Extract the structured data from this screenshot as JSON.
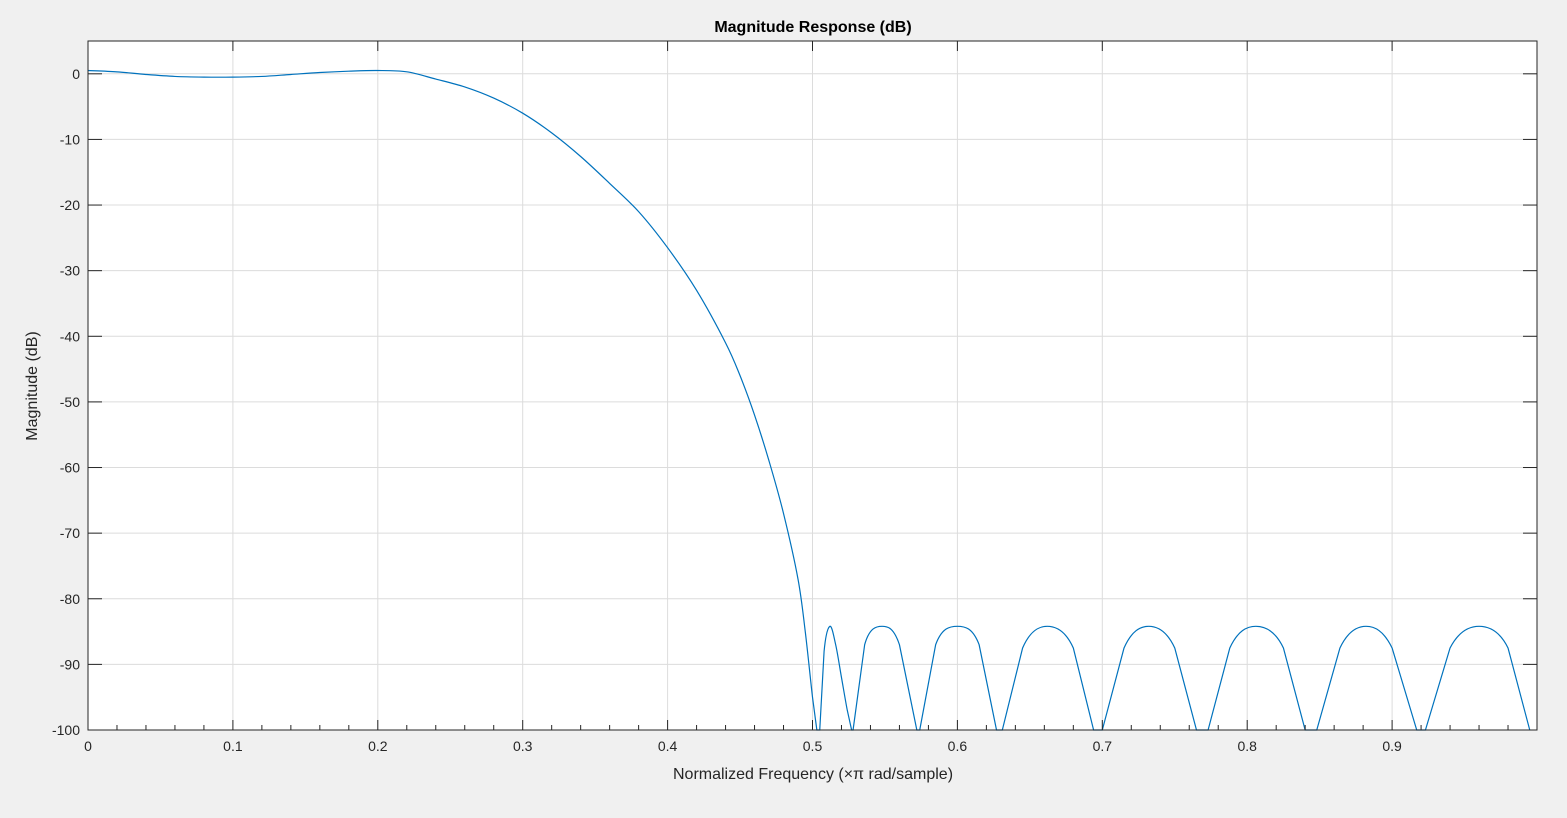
{
  "chart_data": {
    "type": "line",
    "title": "Magnitude Response (dB)",
    "xlabel": "Normalized Frequency (×π rad/sample)",
    "ylabel": "Magnitude (dB)",
    "xlim": [
      0,
      1
    ],
    "ylim": [
      -100,
      5
    ],
    "grid": true,
    "legend": "none",
    "xticks": [
      0,
      0.1,
      0.2,
      0.3,
      0.4,
      0.5,
      0.6,
      0.7,
      0.8,
      0.9
    ],
    "xtick_labels": [
      "0",
      "0.1",
      "0.2",
      "0.3",
      "0.4",
      "0.5",
      "0.6",
      "0.7",
      "0.8",
      "0.9"
    ],
    "yticks": [
      0,
      -10,
      -20,
      -30,
      -40,
      -50,
      -60,
      -70,
      -80,
      -90,
      -100
    ],
    "ytick_labels": [
      "0",
      "-10",
      "-20",
      "-30",
      "-40",
      "-50",
      "-60",
      "-70",
      "-80",
      "-90",
      "-100"
    ],
    "series": [
      {
        "color": "#0072bd",
        "x": [
          0,
          0.02,
          0.04,
          0.06,
          0.08,
          0.1,
          0.12,
          0.14,
          0.16,
          0.18,
          0.2,
          0.22,
          0.24,
          0.26,
          0.28,
          0.3,
          0.32,
          0.34,
          0.36,
          0.38,
          0.4,
          0.42,
          0.44,
          0.45,
          0.46,
          0.47,
          0.48,
          0.49,
          0.495,
          0.5,
          0.503,
          0.505,
          0.508,
          0.512,
          0.516,
          0.52,
          0.524,
          0.527,
          0.528,
          0.536,
          0.548,
          0.56,
          0.572,
          0.574,
          0.585,
          0.6,
          0.615,
          0.627,
          0.631,
          0.645,
          0.662,
          0.68,
          0.694,
          0.7,
          0.715,
          0.732,
          0.75,
          0.765,
          0.773,
          0.788,
          0.806,
          0.825,
          0.84,
          0.848,
          0.864,
          0.882,
          0.9,
          0.917,
          0.923,
          0.94,
          0.96,
          0.98,
          0.995
        ],
        "y": [
          0.5,
          0.3,
          -0.1,
          -0.4,
          -0.5,
          -0.5,
          -0.4,
          -0.1,
          0.2,
          0.4,
          0.5,
          0.3,
          -0.8,
          -2.0,
          -3.7,
          -6.0,
          -9.0,
          -12.6,
          -16.7,
          -21.0,
          -26.5,
          -33.0,
          -41.0,
          -46.0,
          -52.0,
          -59.0,
          -67.0,
          -77.0,
          -85.0,
          -95.0,
          -100,
          -100,
          -88.0,
          -84.2,
          -87.0,
          -92.0,
          -97.0,
          -100,
          -100,
          -87.0,
          -84.2,
          -87.0,
          -100,
          -100,
          -87.0,
          -84.2,
          -87.0,
          -100,
          -100,
          -87.5,
          -84.2,
          -87.5,
          -100,
          -100,
          -87.5,
          -84.2,
          -87.5,
          -100,
          -100,
          -87.5,
          -84.2,
          -87.5,
          -100,
          -100,
          -87.5,
          -84.2,
          -87.5,
          -100,
          -100,
          -87.5,
          -84.2,
          -87.5,
          -100
        ]
      }
    ]
  }
}
